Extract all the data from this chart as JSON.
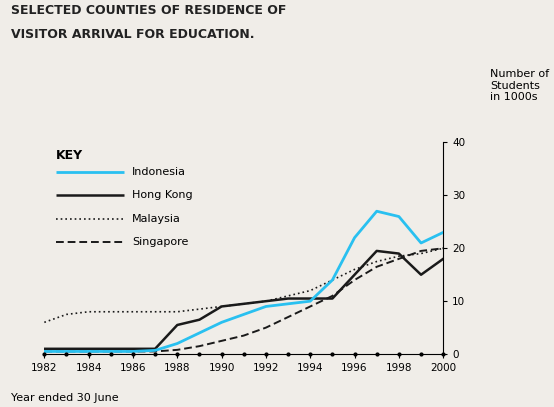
{
  "title_line1": "SELECTED COUNTIES OF RESIDENCE OF",
  "title_line2": "VISITOR ARRIVAL FOR EDUCATION.",
  "ylabel": "Number of\nStudents\nin 1000s",
  "xlabel": "Year ended 30 June",
  "years": [
    1982,
    1983,
    1984,
    1985,
    1986,
    1987,
    1988,
    1989,
    1990,
    1991,
    1992,
    1993,
    1994,
    1995,
    1996,
    1997,
    1998,
    1999,
    2000
  ],
  "indonesia": [
    0.5,
    0.5,
    0.5,
    0.5,
    0.5,
    0.7,
    2.0,
    4.0,
    6.0,
    7.5,
    9.0,
    9.5,
    10.0,
    14.0,
    22.0,
    27.0,
    26.0,
    21.0,
    23.0
  ],
  "hong_kong": [
    1.0,
    1.0,
    1.0,
    1.0,
    1.0,
    1.0,
    5.5,
    6.5,
    9.0,
    9.5,
    10.0,
    10.5,
    10.5,
    10.5,
    15.0,
    19.5,
    19.0,
    15.0,
    18.0
  ],
  "malaysia": [
    6.0,
    7.5,
    8.0,
    8.0,
    8.0,
    8.0,
    8.0,
    8.5,
    9.0,
    9.5,
    10.0,
    11.0,
    12.0,
    14.0,
    16.0,
    17.5,
    18.5,
    19.0,
    20.0
  ],
  "singapore": [
    0.5,
    0.5,
    0.5,
    0.5,
    0.5,
    0.5,
    0.8,
    1.5,
    2.5,
    3.5,
    5.0,
    7.0,
    9.0,
    11.0,
    14.0,
    16.5,
    18.0,
    19.5,
    20.0
  ],
  "indonesia_color": "#29c0f0",
  "hong_kong_color": "#1a1a1a",
  "malaysia_color": "#1a1a1a",
  "singapore_color": "#1a1a1a",
  "ylim": [
    0,
    40
  ],
  "yticks": [
    0,
    10,
    20,
    30,
    40
  ],
  "xticks": [
    1982,
    1984,
    1986,
    1988,
    1990,
    1992,
    1994,
    1996,
    1998,
    2000
  ],
  "all_years": [
    1982,
    1983,
    1984,
    1985,
    1986,
    1987,
    1988,
    1989,
    1990,
    1991,
    1992,
    1993,
    1994,
    1995,
    1996,
    1997,
    1998,
    1999,
    2000
  ],
  "background_color": "#f0ede8",
  "key_label": "KEY",
  "legend_labels": [
    "Indonesia",
    "Hong Kong",
    "Malaysia",
    "Singapore"
  ]
}
